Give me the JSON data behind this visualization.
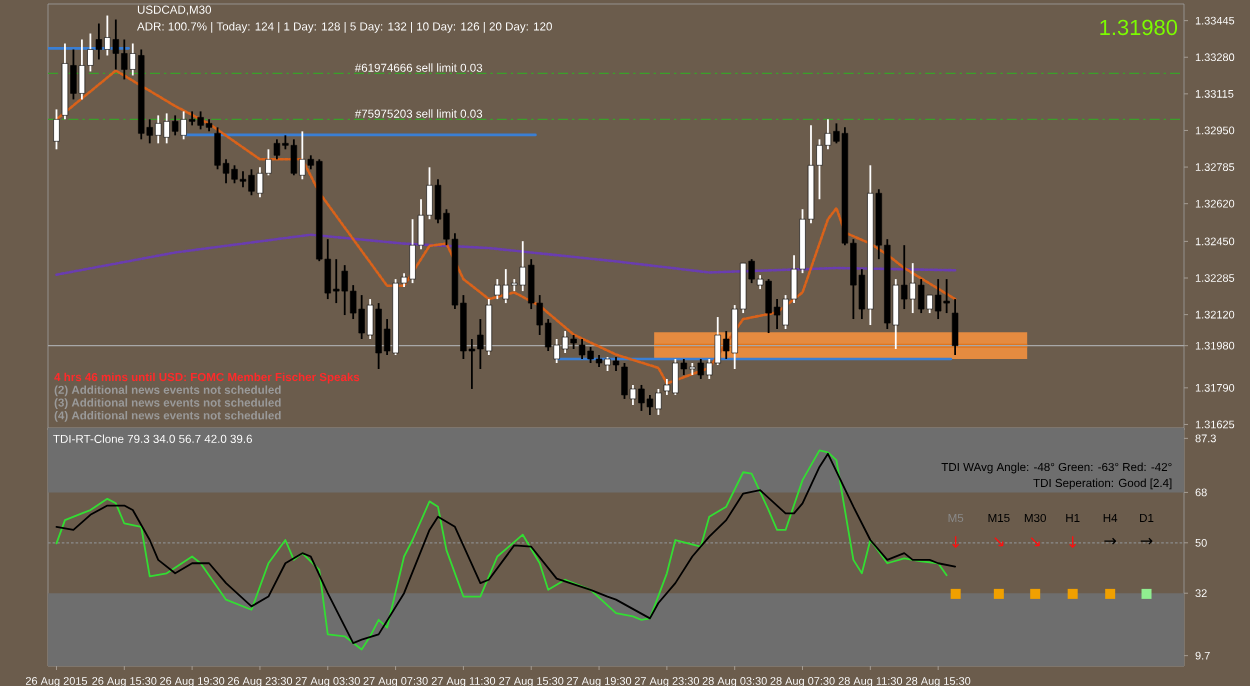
{
  "chart_data": [
    {
      "type": "candlestick",
      "title": "USDCAD,M30",
      "annotations": [
        "ADR: 100.7% | Today: 124 | 1 Day: 128 | 5 Day: 132 | 10 Day: 126 | 20 Day: 120",
        "1.31980",
        "4 hrs 46 mins until USD: FOMC Member Fischer Speaks",
        "(2) Additional news events not scheduled",
        "(3) Additional news events not scheduled",
        "(4) Additional news events not scheduled"
      ],
      "xlim": [
        "2015-08-26T11:00",
        "2015-08-29T06:00"
      ],
      "ylim": [
        1.316,
        1.3352
      ],
      "yticks": [
        {
          "value": 1.33445,
          "label": "1.33445"
        },
        {
          "value": 1.3328,
          "label": "1.33280"
        },
        {
          "value": 1.33115,
          "label": "1.33115"
        },
        {
          "value": 1.3295,
          "label": "1.32950"
        },
        {
          "value": 1.32785,
          "label": "1.32785"
        },
        {
          "value": 1.3262,
          "label": "1.32620"
        },
        {
          "value": 1.3245,
          "label": "1.32450"
        },
        {
          "value": 1.32285,
          "label": "1.32285"
        },
        {
          "value": 1.3212,
          "label": "1.32120"
        },
        {
          "value": 1.3198,
          "label": "1.31980"
        },
        {
          "value": 1.3179,
          "label": "1.31790"
        },
        {
          "value": 1.31625,
          "label": "1.31625"
        }
      ],
      "tick_labels": "y",
      "ref_lines": [
        {
          "axis": "y",
          "value": 1.33207,
          "label": "#61974666 sell limit 0.03",
          "color": "#3aa02a",
          "line_style": "dashed"
        },
        {
          "axis": "y",
          "value": 1.33,
          "label": "#75975203 sell limit 0.03",
          "color": "#3aa02a",
          "line_style": "dashed"
        },
        {
          "axis": "y",
          "value": 1.3198,
          "color": "#a8a8a8",
          "line_style": "solid"
        }
      ],
      "series": [
        {
          "type": "line",
          "color": "#e0761e",
          "x": [
            "2015-08-27T22:45",
            "2015-08-28T20:45"
          ],
          "values": [
            1.3198,
            1.3198
          ],
          "lower": [
            1.3192,
            1.3192
          ],
          "upper": [
            1.3204,
            1.3204
          ]
        },
        {
          "type": "line",
          "color": "#3a7fd5",
          "line_style": "solid",
          "x": [
            "2015-08-26T11:00",
            "2015-08-26T15:45"
          ],
          "values": [
            1.3332,
            1.3332
          ]
        },
        {
          "type": "line",
          "color": "#3a7fd5",
          "line_style": "solid",
          "x": [
            "2015-08-26T19:00",
            "2015-08-27T15:45"
          ],
          "values": [
            1.3293,
            1.3293
          ]
        },
        {
          "type": "line",
          "color": "#3a7fd5",
          "line_style": "solid",
          "x": [
            "2015-08-27T17:00",
            "2015-08-28T16:15"
          ],
          "values": [
            1.3192,
            1.3192
          ]
        },
        {
          "type": "line",
          "color": "#6a3db0",
          "line_style": "dotted",
          "x": [
            "2015-08-26T11:30",
            "2015-08-26T18:30",
            "2015-08-27T02:30",
            "2015-08-27T08:00",
            "2015-08-27T13:00",
            "2015-08-27T20:30",
            "2015-08-28T02:00",
            "2015-08-28T09:30",
            "2015-08-28T16:30"
          ],
          "values": [
            1.323,
            1.324,
            1.3248,
            1.3244,
            1.3242,
            1.3236,
            1.3231,
            1.3233,
            1.3232
          ]
        },
        {
          "type": "line",
          "color": "#d9621a",
          "line_style": "dotted",
          "x": [
            "2015-08-26T11:30",
            "2015-08-26T15:00",
            "2015-08-26T18:30",
            "2015-08-26T20:30",
            "2015-08-26T23:30",
            "2015-08-27T02:00",
            "2015-08-27T03:00",
            "2015-08-27T05:00",
            "2015-08-27T07:00",
            "2015-08-27T08:00",
            "2015-08-27T09:30",
            "2015-08-27T10:30",
            "2015-08-27T11:30",
            "2015-08-27T13:00",
            "2015-08-27T14:30",
            "2015-08-27T16:00",
            "2015-08-27T18:00",
            "2015-08-27T20:30",
            "2015-08-27T23:00",
            "2015-08-27T23:30",
            "2015-08-28T02:00",
            "2015-08-28T04:00",
            "2015-08-28T06:00",
            "2015-08-28T07:30",
            "2015-08-28T09:00",
            "2015-08-28T09:30",
            "2015-08-28T10:00",
            "2015-08-28T11:30",
            "2015-08-28T12:30",
            "2015-08-28T13:30",
            "2015-08-28T15:00",
            "2015-08-28T16:30"
          ],
          "values": [
            1.33,
            1.3322,
            1.3306,
            1.3298,
            1.3282,
            1.3282,
            1.3267,
            1.3246,
            1.3225,
            1.3225,
            1.3243,
            1.3244,
            1.3228,
            1.3219,
            1.3222,
            1.3216,
            1.3203,
            1.3194,
            1.3188,
            1.3181,
            1.3188,
            1.321,
            1.3213,
            1.3222,
            1.3255,
            1.326,
            1.3249,
            1.3244,
            1.3239,
            1.3233,
            1.3226,
            1.3219
          ]
        },
        {
          "x": [
            "2015-08-26T11:30",
            "2015-08-26T12:00",
            "2015-08-26T12:30",
            "2015-08-26T13:00",
            "2015-08-26T13:30",
            "2015-08-26T14:00",
            "2015-08-26T14:30",
            "2015-08-26T15:00",
            "2015-08-26T15:30",
            "2015-08-26T16:00",
            "2015-08-26T16:30",
            "2015-08-26T17:00",
            "2015-08-26T17:30",
            "2015-08-26T18:00",
            "2015-08-26T18:30",
            "2015-08-26T19:00",
            "2015-08-26T19:30",
            "2015-08-26T20:00",
            "2015-08-26T20:30",
            "2015-08-26T21:00",
            "2015-08-26T21:30",
            "2015-08-26T22:00",
            "2015-08-26T22:30",
            "2015-08-26T23:00",
            "2015-08-26T23:30",
            "2015-08-27T00:00",
            "2015-08-27T00:30",
            "2015-08-27T01:00",
            "2015-08-27T01:30",
            "2015-08-27T02:00",
            "2015-08-27T02:30",
            "2015-08-27T03:00",
            "2015-08-27T03:30",
            "2015-08-27T04:00",
            "2015-08-27T04:30",
            "2015-08-27T05:00",
            "2015-08-27T05:30",
            "2015-08-27T06:00",
            "2015-08-27T06:30",
            "2015-08-27T07:00",
            "2015-08-27T07:30",
            "2015-08-27T08:00",
            "2015-08-27T08:30",
            "2015-08-27T09:00",
            "2015-08-27T09:30",
            "2015-08-27T10:00",
            "2015-08-27T10:30",
            "2015-08-27T11:00",
            "2015-08-27T11:30",
            "2015-08-27T12:00",
            "2015-08-27T12:30",
            "2015-08-27T13:00",
            "2015-08-27T13:30",
            "2015-08-27T14:00",
            "2015-08-27T14:30",
            "2015-08-27T15:00",
            "2015-08-27T15:30",
            "2015-08-27T16:00",
            "2015-08-27T16:30",
            "2015-08-27T17:00",
            "2015-08-27T17:30",
            "2015-08-27T18:00",
            "2015-08-27T18:30",
            "2015-08-27T19:00",
            "2015-08-27T19:30",
            "2015-08-27T20:00",
            "2015-08-27T20:30",
            "2015-08-27T21:00",
            "2015-08-27T21:30",
            "2015-08-27T22:00",
            "2015-08-27T22:30",
            "2015-08-27T23:00",
            "2015-08-27T23:30",
            "2015-08-28T00:00",
            "2015-08-28T00:30",
            "2015-08-28T01:00",
            "2015-08-28T01:30",
            "2015-08-28T02:00",
            "2015-08-28T02:30",
            "2015-08-28T03:00",
            "2015-08-28T03:30",
            "2015-08-28T04:00",
            "2015-08-28T04:30",
            "2015-08-28T05:00",
            "2015-08-28T05:30",
            "2015-08-28T06:00",
            "2015-08-28T06:30",
            "2015-08-28T07:00",
            "2015-08-28T07:30",
            "2015-08-28T08:00",
            "2015-08-28T08:30",
            "2015-08-28T09:00",
            "2015-08-28T09:30",
            "2015-08-28T10:00",
            "2015-08-28T10:30",
            "2015-08-28T11:00",
            "2015-08-28T11:30",
            "2015-08-28T12:00",
            "2015-08-28T12:30",
            "2015-08-28T13:00",
            "2015-08-28T13:30",
            "2015-08-28T14:00",
            "2015-08-28T14:30",
            "2015-08-28T15:00",
            "2015-08-28T15:30",
            "2015-08-28T16:00",
            "2015-08-28T16:30"
          ],
          "ohlc": [
            [
              1.32901,
              1.33045,
              1.32865,
              1.33
            ],
            [
              1.33018,
              1.33342,
              1.33,
              1.33252
            ],
            [
              1.33243,
              1.33315,
              1.3309,
              1.33117
            ],
            [
              1.33117,
              1.3336,
              1.3309,
              1.33243
            ],
            [
              1.33243,
              1.33387,
              1.33216,
              1.33315
            ],
            [
              1.3336,
              1.33432,
              1.3327,
              1.33315
            ],
            [
              1.33315,
              1.33468,
              1.33288,
              1.33369
            ],
            [
              1.3336,
              1.3345,
              1.33225,
              1.33297
            ],
            [
              1.33297,
              1.3336,
              1.3318,
              1.33225
            ],
            [
              1.33225,
              1.33342,
              1.33198,
              1.33297
            ],
            [
              1.33288,
              1.33315,
              1.3291,
              1.32937
            ],
            [
              1.32964,
              1.33,
              1.32892,
              1.32928
            ],
            [
              1.32928,
              1.33018,
              1.32892,
              1.32982
            ],
            [
              1.32919,
              1.33027,
              1.32892,
              1.32991
            ],
            [
              1.32991,
              1.33018,
              1.32928,
              1.32946
            ],
            [
              1.32928,
              1.33036,
              1.3291,
              1.33
            ],
            [
              1.33,
              1.33036,
              1.32973,
              1.32991
            ],
            [
              1.33009,
              1.33036,
              1.32955,
              1.32973
            ],
            [
              1.32982,
              1.33,
              1.32946,
              1.32964
            ],
            [
              1.32937,
              1.32964,
              1.32775,
              1.32793
            ],
            [
              1.32802,
              1.3282,
              1.32712,
              1.32757
            ],
            [
              1.32775,
              1.32793,
              1.32712,
              1.3273
            ],
            [
              1.3273,
              1.32766,
              1.32694,
              1.32721
            ],
            [
              1.32748,
              1.32775,
              1.32658,
              1.32676
            ],
            [
              1.32667,
              1.32784,
              1.32649,
              1.32757
            ],
            [
              1.32757,
              1.32865,
              1.32748,
              1.3282
            ],
            [
              1.32892,
              1.3291,
              1.3282,
              1.32838
            ],
            [
              1.32892,
              1.32928,
              1.32865,
              1.32883
            ],
            [
              1.32883,
              1.3291,
              1.32748,
              1.32757
            ],
            [
              1.32748,
              1.32946,
              1.3273,
              1.3282
            ],
            [
              1.3282,
              1.32838,
              1.32775,
              1.32793
            ],
            [
              1.32811,
              1.3282,
              1.32361,
              1.3237
            ],
            [
              1.3237,
              1.3246,
              1.3219,
              1.32217
            ],
            [
              1.32235,
              1.3237,
              1.32172,
              1.32226
            ],
            [
              1.32316,
              1.32343,
              1.32118,
              1.32226
            ],
            [
              1.32226,
              1.32253,
              1.321,
              1.32127
            ],
            [
              1.32145,
              1.32208,
              1.3201,
              1.32037
            ],
            [
              1.32028,
              1.3219,
              1.3201,
              1.32163
            ],
            [
              1.32145,
              1.32172,
              1.31875,
              1.31947
            ],
            [
              1.32055,
              1.321,
              1.31938,
              1.31956
            ],
            [
              1.31947,
              1.3228,
              1.31938,
              1.32262
            ],
            [
              1.32262,
              1.32307,
              1.32244,
              1.32289
            ],
            [
              1.3228,
              1.3255,
              1.32262,
              1.32433
            ],
            [
              1.32433,
              1.3264,
              1.32415,
              1.32568
            ],
            [
              1.32568,
              1.32784,
              1.3255,
              1.32703
            ],
            [
              1.32703,
              1.3273,
              1.32532,
              1.3255
            ],
            [
              1.32577,
              1.32595,
              1.32433,
              1.3246
            ],
            [
              1.3246,
              1.32487,
              1.32145,
              1.32163
            ],
            [
              1.32172,
              1.32208,
              1.3192,
              1.31956
            ],
            [
              1.31965,
              1.3201,
              1.31785,
              1.31956
            ],
            [
              1.32028,
              1.321,
              1.31875,
              1.31965
            ],
            [
              1.31956,
              1.3219,
              1.31938,
              1.32163
            ],
            [
              1.32208,
              1.3228,
              1.3219,
              1.32253
            ],
            [
              1.3219,
              1.32325,
              1.32172,
              1.32253
            ],
            [
              1.32253,
              1.3228,
              1.32226,
              1.32262
            ],
            [
              1.32253,
              1.32451,
              1.32226,
              1.32334
            ],
            [
              1.32343,
              1.3237,
              1.32145,
              1.32172
            ],
            [
              1.32172,
              1.32208,
              1.32028,
              1.32073
            ],
            [
              1.32082,
              1.321,
              1.31956,
              1.31974
            ],
            [
              1.3192,
              1.3201,
              1.31902,
              1.31983
            ],
            [
              1.31965,
              1.32046,
              1.31947,
              1.32019
            ],
            [
              1.3201,
              1.32028,
              1.31965,
              1.31992
            ],
            [
              1.31983,
              1.3201,
              1.3192,
              1.31938
            ],
            [
              1.31956,
              1.31974,
              1.31902,
              1.3192
            ],
            [
              1.3192,
              1.31938,
              1.31884,
              1.31902
            ],
            [
              1.31893,
              1.31929,
              1.31866,
              1.3192
            ],
            [
              1.31911,
              1.31929,
              1.31866,
              1.31893
            ],
            [
              1.31884,
              1.31902,
              1.3174,
              1.31758
            ],
            [
              1.3174,
              1.31803,
              1.31713,
              1.31785
            ],
            [
              1.31785,
              1.31803,
              1.31686,
              1.31722
            ],
            [
              1.3174,
              1.31758,
              1.31668,
              1.31704
            ],
            [
              1.31695,
              1.31785,
              1.31668,
              1.31767
            ],
            [
              1.31776,
              1.3183,
              1.31758,
              1.31803
            ],
            [
              1.31767,
              1.3192,
              1.31758,
              1.31902
            ],
            [
              1.31902,
              1.3192,
              1.31848,
              1.31875
            ],
            [
              1.31875,
              1.31902,
              1.31848,
              1.31884
            ],
            [
              1.31902,
              1.3192,
              1.3183,
              1.31848
            ],
            [
              1.31848,
              1.3192,
              1.3183,
              1.31902
            ],
            [
              1.31902,
              1.32109,
              1.31893,
              1.32028
            ],
            [
              1.3201,
              1.32046,
              1.3192,
              1.31956
            ],
            [
              1.31947,
              1.32163,
              1.31875,
              1.32145
            ],
            [
              1.32145,
              1.32352,
              1.32127,
              1.32352
            ],
            [
              1.32361,
              1.3237,
              1.32262,
              1.3228
            ],
            [
              1.32253,
              1.32298,
              1.32235,
              1.3228
            ],
            [
              1.32271,
              1.3228,
              1.32037,
              1.32127
            ],
            [
              1.32154,
              1.3219,
              1.32055,
              1.32118
            ],
            [
              1.32073,
              1.32208,
              1.32055,
              1.3219
            ],
            [
              1.3219,
              1.32388,
              1.32172,
              1.32325
            ],
            [
              1.32325,
              1.32595,
              1.32307,
              1.3255
            ],
            [
              1.3255,
              1.32973,
              1.32532,
              1.32793
            ],
            [
              1.32793,
              1.3291,
              1.3264,
              1.32883
            ],
            [
              1.32883,
              1.33,
              1.32865,
              1.32937
            ],
            [
              1.32946,
              1.32982,
              1.32892,
              1.32901
            ],
            [
              1.32937,
              1.32964,
              1.32433,
              1.32442
            ],
            [
              1.32442,
              1.3246,
              1.321,
              1.32253
            ],
            [
              1.32298,
              1.32325,
              1.321,
              1.32145
            ],
            [
              1.32145,
              1.32793,
              1.32073,
              1.32667
            ],
            [
              1.32667,
              1.32685,
              1.3237,
              1.32433
            ],
            [
              1.32433,
              1.3246,
              1.32055,
              1.32082
            ],
            [
              1.32073,
              1.3228,
              1.31965,
              1.32253
            ],
            [
              1.32253,
              1.32433,
              1.32145,
              1.3219
            ],
            [
              1.3219,
              1.32352,
              1.32127,
              1.32262
            ],
            [
              1.32253,
              1.3228,
              1.32127,
              1.32145
            ],
            [
              1.32145,
              1.32208,
              1.32127,
              1.32208
            ],
            [
              1.32208,
              1.3228,
              1.321,
              1.32136
            ],
            [
              1.32181,
              1.3228,
              1.32127,
              1.32172
            ],
            [
              1.32127,
              1.3219,
              1.31938,
              1.3198
            ]
          ],
          "colors": [
            "#ffffff",
            "#ffffff",
            "#000000",
            "#ffffff",
            "#ffffff",
            "#000000",
            "#ffffff",
            "#000000",
            "#000000",
            "#ffffff",
            "#000000",
            "#000000",
            "#ffffff",
            "#ffffff",
            "#000000",
            "#ffffff",
            "#000000",
            "#000000",
            "#000000",
            "#000000",
            "#000000",
            "#000000",
            "#000000",
            "#000000",
            "#ffffff",
            "#ffffff",
            "#000000",
            "#000000",
            "#000000",
            "#ffffff",
            "#000000",
            "#000000",
            "#000000",
            "#000000",
            "#000000",
            "#000000",
            "#000000",
            "#ffffff",
            "#000000",
            "#000000",
            "#ffffff",
            "#ffffff",
            "#ffffff",
            "#ffffff",
            "#ffffff",
            "#000000",
            "#000000",
            "#000000",
            "#000000",
            "#000000",
            "#000000",
            "#ffffff",
            "#ffffff",
            "#ffffff",
            "#ffffff",
            "#ffffff",
            "#000000",
            "#000000",
            "#000000",
            "#ffffff",
            "#ffffff",
            "#000000",
            "#000000",
            "#000000",
            "#000000",
            "#ffffff",
            "#000000",
            "#000000",
            "#ffffff",
            "#000000",
            "#000000",
            "#ffffff",
            "#ffffff",
            "#ffffff",
            "#000000",
            "#ffffff",
            "#000000",
            "#ffffff",
            "#ffffff",
            "#000000",
            "#ffffff",
            "#ffffff",
            "#000000",
            "#ffffff",
            "#000000",
            "#000000",
            "#ffffff",
            "#ffffff",
            "#ffffff",
            "#ffffff",
            "#ffffff",
            "#ffffff",
            "#000000",
            "#000000",
            "#000000",
            "#000000",
            "#ffffff",
            "#000000",
            "#000000",
            "#ffffff",
            "#000000",
            "#ffffff",
            "#000000",
            "#ffffff",
            "#000000",
            "#000000",
            "#000000"
          ]
        }
      ]
    },
    {
      "type": "line",
      "title": "TDI-RT-Clone 79.3 34.0 56.7 42.0 39.6",
      "annotations": [
        "TDI WAvg Angle: -48° Green: -63° Red: -42°",
        "TDI Seperation: Good [2.4]",
        "M5",
        "M15",
        "M30",
        "H1",
        "H4",
        "D1",
        "↓",
        "↘",
        "↘",
        "↓",
        "→",
        "→"
      ],
      "xlim": [
        "2015-08-26T11:00",
        "2015-08-29T06:00"
      ],
      "xticks": [
        {
          "value": "2015-08-26T11:30",
          "label": "26 Aug 2015"
        },
        {
          "value": "2015-08-26T15:30",
          "label": "26 Aug 15:30"
        },
        {
          "value": "2015-08-26T19:30",
          "label": "26 Aug 19:30"
        },
        {
          "value": "2015-08-26T23:30",
          "label": "26 Aug 23:30"
        },
        {
          "value": "2015-08-27T03:30",
          "label": "27 Aug 03:30"
        },
        {
          "value": "2015-08-27T07:30",
          "label": "27 Aug 07:30"
        },
        {
          "value": "2015-08-27T11:30",
          "label": "27 Aug 11:30"
        },
        {
          "value": "2015-08-27T15:30",
          "label": "27 Aug 15:30"
        },
        {
          "value": "2015-08-27T19:30",
          "label": "27 Aug 19:30"
        },
        {
          "value": "2015-08-27T23:30",
          "label": "27 Aug 23:30"
        },
        {
          "value": "2015-08-28T03:30",
          "label": "28 Aug 03:30"
        },
        {
          "value": "2015-08-28T07:30",
          "label": "28 Aug 07:30"
        },
        {
          "value": "2015-08-28T11:30",
          "label": "28 Aug 11:30"
        },
        {
          "value": "2015-08-28T15:30",
          "label": "28 Aug 15:30"
        }
      ],
      "ylim": [
        6,
        91
      ],
      "yticks": [
        87.3,
        68,
        50,
        32,
        9.7
      ],
      "ref_lines": [
        {
          "axis": "y",
          "value": 50,
          "color": "#8c8c8c",
          "line_style": "dotted"
        }
      ],
      "bands": [
        {
          "axis": "y",
          "from": 68,
          "to": 91,
          "color": "#6e6e6e"
        },
        {
          "axis": "y",
          "from": 6,
          "to": 32,
          "color": "#6e6e6e"
        }
      ],
      "series": [
        {
          "color": "#33dd33",
          "x": [
            "2015-08-26T11:30",
            "2015-08-26T12:00",
            "2015-08-26T13:00",
            "2015-08-26T13:30",
            "2015-08-26T14:30",
            "2015-08-26T15:00",
            "2015-08-26T15:30",
            "2015-08-26T16:30",
            "2015-08-26T17:00",
            "2015-08-26T18:00",
            "2015-08-26T19:30",
            "2015-08-26T20:00",
            "2015-08-26T21:30",
            "2015-08-26T23:00",
            "2015-08-27T00:00",
            "2015-08-27T01:00",
            "2015-08-27T01:30",
            "2015-08-27T02:00",
            "2015-08-27T03:00",
            "2015-08-27T03:30",
            "2015-08-27T04:30",
            "2015-08-27T05:30",
            "2015-08-27T06:00",
            "2015-08-27T06:30",
            "2015-08-27T07:00",
            "2015-08-27T08:00",
            "2015-08-27T08:30",
            "2015-08-27T09:30",
            "2015-08-27T10:00",
            "2015-08-27T10:30",
            "2015-08-27T11:30",
            "2015-08-27T12:30",
            "2015-08-27T13:30",
            "2015-08-27T15:00",
            "2015-08-27T16:00",
            "2015-08-27T16:30",
            "2015-08-27T17:30",
            "2015-08-27T19:00",
            "2015-08-27T20:30",
            "2015-08-27T21:30",
            "2015-08-27T22:00",
            "2015-08-27T22:30",
            "2015-08-27T23:30",
            "2015-08-28T00:00",
            "2015-08-28T01:30",
            "2015-08-28T02:00",
            "2015-08-28T03:00",
            "2015-08-28T04:00",
            "2015-08-28T04:30",
            "2015-08-28T05:30",
            "2015-08-28T06:00",
            "2015-08-28T06:30",
            "2015-08-28T07:30",
            "2015-08-28T08:30",
            "2015-08-28T09:00",
            "2015-08-28T09:30",
            "2015-08-28T10:30",
            "2015-08-28T11:00",
            "2015-08-28T11:30",
            "2015-08-28T12:30",
            "2015-08-28T13:30",
            "2015-08-28T14:30",
            "2015-08-28T15:30",
            "2015-08-28T16:00"
          ],
          "values": [
            49.8,
            58.1,
            60.5,
            61.7,
            65.7,
            64.1,
            56.9,
            55.7,
            38.0,
            39.1,
            45.1,
            42.7,
            29.7,
            26.1,
            42.7,
            51.0,
            43.9,
            46.3,
            40.3,
            17.3,
            16.6,
            11.9,
            16.6,
            22.5,
            19.7,
            45.1,
            51.0,
            64.8,
            62.9,
            47.4,
            30.8,
            30.8,
            45.1,
            52.9,
            42.7,
            33.2,
            36.8,
            33.2,
            24.9,
            23.7,
            22.5,
            23.0,
            39.1,
            51.0,
            48.6,
            59.3,
            62.9,
            75.2,
            74.7,
            61.7,
            54.6,
            54.6,
            72.4,
            83.0,
            82.3,
            79.5,
            43.9,
            39.1,
            51.0,
            42.7,
            44.4,
            43.4,
            42.7,
            38.4
          ]
        },
        {
          "color": "#000000",
          "x": [
            "2015-08-26T11:30",
            "2015-08-26T12:30",
            "2015-08-26T13:30",
            "2015-08-26T14:30",
            "2015-08-26T15:30",
            "2015-08-26T16:00",
            "2015-08-26T17:00",
            "2015-08-26T17:30",
            "2015-08-26T18:30",
            "2015-08-26T19:30",
            "2015-08-26T20:30",
            "2015-08-26T21:30",
            "2015-08-26T23:00",
            "2015-08-27T00:00",
            "2015-08-27T01:00",
            "2015-08-27T02:00",
            "2015-08-27T02:30",
            "2015-08-27T03:30",
            "2015-08-27T05:00",
            "2015-08-27T05:30",
            "2015-08-27T06:30",
            "2015-08-27T08:00",
            "2015-08-27T09:30",
            "2015-08-27T10:00",
            "2015-08-27T11:00",
            "2015-08-27T12:30",
            "2015-08-27T13:00",
            "2015-08-27T14:30",
            "2015-08-27T15:30",
            "2015-08-27T17:00",
            "2015-08-27T19:00",
            "2015-08-27T20:00",
            "2015-08-27T20:30",
            "2015-08-27T22:30",
            "2015-08-27T23:00",
            "2015-08-28T00:00",
            "2015-08-28T01:00",
            "2015-08-28T02:00",
            "2015-08-28T03:00",
            "2015-08-28T04:00",
            "2015-08-28T05:00",
            "2015-08-28T06:30",
            "2015-08-28T07:00",
            "2015-08-28T07:30",
            "2015-08-28T08:30",
            "2015-08-28T09:00",
            "2015-08-28T10:30",
            "2015-08-28T11:30",
            "2015-08-28T12:30",
            "2015-08-28T13:30",
            "2015-08-28T14:00",
            "2015-08-28T15:00",
            "2015-08-28T15:30",
            "2015-08-28T16:30"
          ],
          "values": [
            55.7,
            54.6,
            60.0,
            63.3,
            63.3,
            61.7,
            51.0,
            43.9,
            39.1,
            42.7,
            42.7,
            35.6,
            27.3,
            30.8,
            42.7,
            46.3,
            45.1,
            32.0,
            14.2,
            15.4,
            17.3,
            32.0,
            54.6,
            59.3,
            55.7,
            35.6,
            36.8,
            49.1,
            48.6,
            37.2,
            33.2,
            30.8,
            29.7,
            23.0,
            28.5,
            35.6,
            45.1,
            52.2,
            58.1,
            67.6,
            68.8,
            60.5,
            60.5,
            64.1,
            77.1,
            81.8,
            62.9,
            51.0,
            43.9,
            46.3,
            43.9,
            43.9,
            42.7,
            41.5
          ]
        }
      ]
    }
  ]
}
